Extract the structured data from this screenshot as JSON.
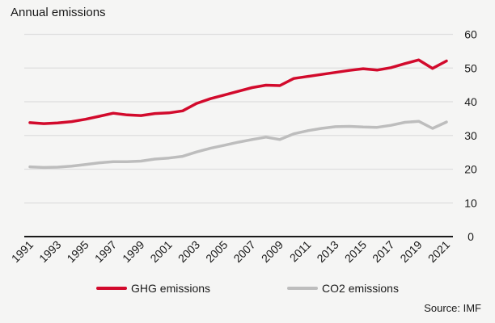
{
  "title": "Annual emissions",
  "source": "Source: IMF",
  "colors": {
    "ghg_red": "#d20a2c",
    "co2_gray": "#bdbdbd",
    "gridline": "#dedede",
    "axis": "#1a1a1a",
    "background": "#f5f5f4"
  },
  "legend": [
    {
      "label": "GHG emissions"
    },
    {
      "label": "CO2 emissions"
    }
  ],
  "chart_data": {
    "type": "line",
    "title": "Annual emissions",
    "x": [
      1991,
      1992,
      1993,
      1994,
      1995,
      1996,
      1997,
      1998,
      1999,
      2000,
      2001,
      2002,
      2003,
      2004,
      2005,
      2006,
      2007,
      2008,
      2009,
      2010,
      2011,
      2012,
      2013,
      2014,
      2015,
      2016,
      2017,
      2018,
      2019,
      2020,
      2021
    ],
    "xtick_labels": [
      "1991",
      "1993",
      "1995",
      "1997",
      "1999",
      "2001",
      "2003",
      "2005",
      "2007",
      "2009",
      "2011",
      "2013",
      "2015",
      "2017",
      "2019",
      "2021"
    ],
    "series": [
      {
        "name": "GHG emissions",
        "color": "#d20a2c",
        "values": [
          33.8,
          33.5,
          33.7,
          34.1,
          34.8,
          35.7,
          36.6,
          36.1,
          35.9,
          36.5,
          36.7,
          37.3,
          39.5,
          40.9,
          42.0,
          43.1,
          44.2,
          44.9,
          44.8,
          46.9,
          47.5,
          48.1,
          48.7,
          49.3,
          49.8,
          49.4,
          50.1,
          51.3,
          52.4,
          49.9,
          52.1
        ]
      },
      {
        "name": "CO2 emissions",
        "color": "#bdbdbd",
        "values": [
          20.7,
          20.5,
          20.6,
          20.9,
          21.4,
          21.9,
          22.2,
          22.2,
          22.4,
          23.0,
          23.3,
          23.8,
          25.1,
          26.2,
          27.1,
          28.0,
          28.8,
          29.5,
          28.8,
          30.5,
          31.4,
          32.1,
          32.6,
          32.7,
          32.5,
          32.4,
          33.0,
          33.9,
          34.2,
          32.1,
          34.0
        ]
      }
    ],
    "ylim": [
      0,
      60
    ],
    "yticks": [
      0,
      10,
      20,
      30,
      40,
      50,
      60
    ],
    "y_axis_side": "right",
    "grid": "horizontal",
    "legend_position": "bottom",
    "xlabel": "",
    "ylabel": ""
  }
}
